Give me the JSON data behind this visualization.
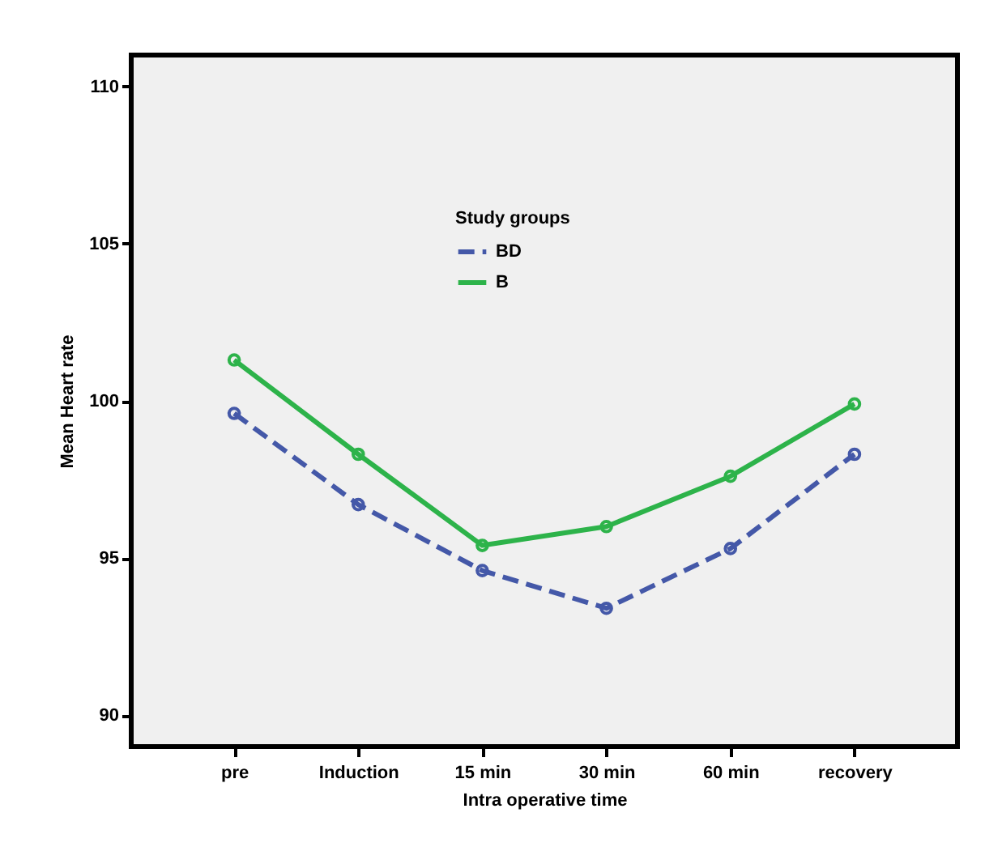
{
  "chart_data": {
    "type": "line",
    "xlabel": "Intra operative time",
    "ylabel": "Mean Heart rate",
    "legend_title": "Study groups",
    "categories": [
      "pre",
      "Induction",
      "15 min",
      "30 min",
      "60 min",
      "recovery"
    ],
    "series": [
      {
        "name": "BD",
        "color": "#4458a8",
        "line_style": "dashed",
        "values": [
          99.6,
          96.7,
          94.6,
          93.4,
          95.3,
          98.3
        ]
      },
      {
        "name": "B",
        "color": "#2db34a",
        "line_style": "solid",
        "values": [
          101.3,
          98.3,
          95.4,
          96.0,
          97.6,
          99.9
        ]
      }
    ],
    "ylim": [
      89,
      111
    ],
    "yticks": [
      90,
      95,
      100,
      105,
      110
    ],
    "grid": false,
    "legend": "top",
    "marker": "circle"
  }
}
